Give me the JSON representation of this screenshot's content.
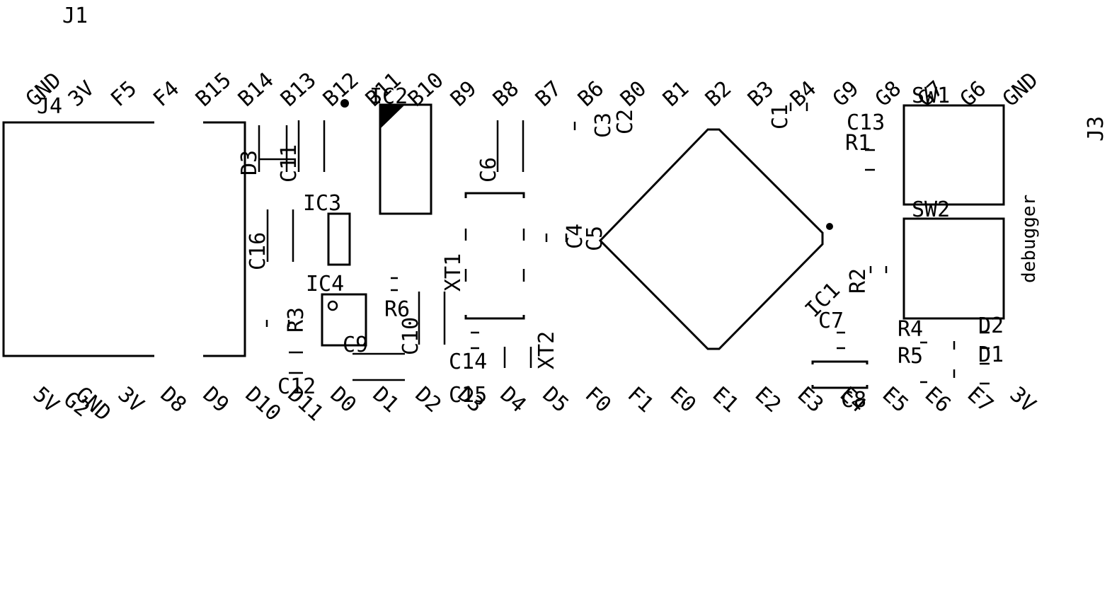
{
  "colors": {
    "ink": "#000000",
    "background": "#ffffff"
  },
  "header": {
    "connector_j1": "J1",
    "connector_j3": "J3"
  },
  "top_pins": [
    "GND",
    "3V",
    "F5",
    "F4",
    "B15",
    "B14",
    "B13",
    "B12",
    "B11",
    "B10",
    "B9",
    "B8",
    "B7",
    "B6",
    "B0",
    "B1",
    "B2",
    "B3",
    "B4",
    "G9",
    "G8",
    "G7",
    "G6",
    "GND"
  ],
  "bottom_pins": [
    "5V",
    "GND",
    "3V",
    "D8",
    "D9",
    "D10",
    "D11",
    "D0",
    "D1",
    "D2",
    "D3",
    "D4",
    "D5",
    "F0",
    "F1",
    "E0",
    "E1",
    "E2",
    "E3",
    "E4",
    "E5",
    "E6",
    "E7",
    "3V"
  ],
  "designators": {
    "J4": "J4",
    "D3": "D3",
    "C11": "C11",
    "C16": "C16",
    "IC2": "IC2",
    "IC3": "IC3",
    "IC4": "IC4",
    "R3": "R3",
    "R6": "R6",
    "C9": "C9",
    "C10": "C10",
    "C12": "C12",
    "G2": "G2",
    "XT1": "XT1",
    "XT2": "XT2",
    "C6": "C6",
    "C14": "C14",
    "C15": "C15",
    "C3": "C3",
    "C2": "C2",
    "C4": "C4",
    "C5": "C5",
    "C1": "C1",
    "IC1": "IC1",
    "C7": "C7",
    "C8": "C8",
    "C13": "C13",
    "R1": "R1",
    "R2": "R2",
    "SW1": "SW1",
    "SW2": "SW2",
    "R4": "R4",
    "R5": "R5",
    "D2": "D2",
    "D1": "D1"
  },
  "notes": {
    "debugger": "debugger"
  }
}
